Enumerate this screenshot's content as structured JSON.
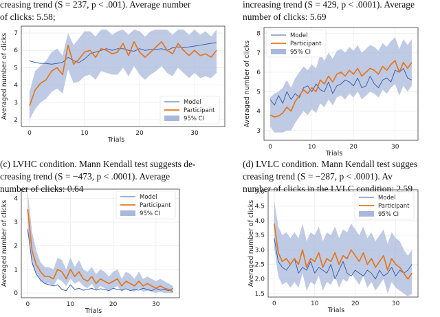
{
  "captions": {
    "top_left": [
      "creasing trend (S = 237, p < .001). Average number",
      "of clicks: 5.58;"
    ],
    "top_right": [
      "increasing trend (S = 429, p < .0001). Average",
      "number of clicks: 5.69"
    ],
    "c": [
      "(c) LVHC condition. Mann Kendall test suggests de-",
      "creasing trend (S = −473, p < .0001). Average",
      "number of clicks: 0.64"
    ],
    "d": [
      "(d) LVLC condition. Mann Kendall test sugges",
      "creasing trend (S = −287, p < .0001). Av",
      "number of clicks in the LVLC condition: 2.59"
    ]
  },
  "chart_data": [
    {
      "id": "a",
      "type": "line",
      "xlabel": "Trials",
      "ylabel": "Averaged number of clicks",
      "xlim": [
        -1.5,
        35.5
      ],
      "ylim": [
        1.6,
        7.4
      ],
      "xticks": [
        0,
        10,
        20,
        30
      ],
      "yticks": [
        2,
        3,
        4,
        5,
        6,
        7
      ],
      "legend_position": "lower-right",
      "legend": [
        "Model",
        "Participant",
        "95% CI"
      ],
      "series": [
        {
          "name": "Model",
          "color": "#3a62ab",
          "x": [
            0,
            1,
            2,
            3,
            4,
            5,
            6,
            7,
            8,
            9,
            10,
            11,
            12,
            13,
            14,
            15,
            16,
            17,
            18,
            19,
            20,
            21,
            22,
            23,
            24,
            25,
            26,
            27,
            28,
            29,
            30,
            31,
            32,
            33,
            34
          ],
          "values": [
            5.4,
            5.3,
            5.25,
            5.25,
            5.2,
            5.25,
            5.3,
            5.6,
            5.4,
            5.3,
            5.5,
            5.8,
            5.9,
            6.0,
            6.1,
            6.0,
            6.1,
            6.1,
            6.0,
            5.95,
            6.1,
            6.0,
            6.05,
            6.05,
            6.1,
            6.0,
            6.15,
            6.2,
            6.15,
            6.2,
            6.25,
            6.3,
            6.35,
            6.4,
            6.45
          ]
        },
        {
          "name": "Participant",
          "color": "#e4761b",
          "x": [
            0,
            1,
            2,
            3,
            4,
            5,
            6,
            7,
            8,
            9,
            10,
            11,
            12,
            13,
            14,
            15,
            16,
            17,
            18,
            19,
            20,
            21,
            22,
            23,
            24,
            25,
            26,
            27,
            28,
            29,
            30,
            31,
            32,
            33,
            34
          ],
          "values": [
            2.8,
            3.7,
            4.1,
            4.3,
            4.8,
            5.0,
            4.6,
            6.3,
            5.2,
            5.5,
            5.9,
            6.0,
            5.6,
            6.1,
            6.0,
            5.8,
            5.9,
            6.4,
            5.7,
            6.5,
            5.9,
            5.6,
            5.9,
            6.2,
            6.5,
            6.0,
            5.8,
            6.4,
            6.0,
            5.7,
            6.0,
            5.7,
            5.8,
            5.6,
            6.0
          ]
        },
        {
          "name": "95% CI",
          "color": "#a9b8dc",
          "lower": [
            2.0,
            2.6,
            3.0,
            3.2,
            3.6,
            3.8,
            3.5,
            4.9,
            4.1,
            4.2,
            4.5,
            4.6,
            4.3,
            4.8,
            4.7,
            4.6,
            4.6,
            5.0,
            4.5,
            5.1,
            4.6,
            4.3,
            4.6,
            4.8,
            5.1,
            4.7,
            4.5,
            5.0,
            4.7,
            4.4,
            4.7,
            4.4,
            4.5,
            4.4,
            4.7
          ],
          "upper": [
            3.6,
            4.8,
            5.1,
            5.4,
            5.9,
            6.1,
            5.7,
            7.0,
            6.3,
            6.7,
            7.1,
            7.1,
            6.8,
            7.2,
            7.2,
            6.9,
            7.1,
            7.2,
            6.9,
            7.2,
            7.1,
            6.8,
            7.1,
            7.2,
            7.2,
            7.2,
            6.9,
            7.2,
            7.2,
            6.9,
            7.2,
            6.9,
            7.1,
            6.8,
            7.2
          ]
        }
      ]
    },
    {
      "id": "b",
      "type": "line",
      "xlabel": "Trials",
      "ylabel": "Averaged number of clicks",
      "xlim": [
        -1.5,
        35.5
      ],
      "ylim": [
        2.5,
        8.3
      ],
      "xticks": [
        0,
        10,
        20,
        30
      ],
      "yticks": [
        3,
        4,
        5,
        6,
        7,
        8
      ],
      "legend_position": "top-left",
      "legend": [
        "Model",
        "Participant",
        "95% CI"
      ],
      "series": [
        {
          "name": "Model",
          "color": "#3a62ab",
          "x": [
            0,
            1,
            2,
            3,
            4,
            5,
            6,
            7,
            8,
            9,
            10,
            11,
            12,
            13,
            14,
            15,
            16,
            17,
            18,
            19,
            20,
            21,
            22,
            23,
            24,
            25,
            26,
            27,
            28,
            29,
            30,
            31,
            32,
            33,
            34
          ],
          "values": [
            4.6,
            4.3,
            4.8,
            4.4,
            5.0,
            4.6,
            4.9,
            4.7,
            5.2,
            5.3,
            5.0,
            5.4,
            5.1,
            5.0,
            5.5,
            4.9,
            5.3,
            5.4,
            5.6,
            5.5,
            5.3,
            5.7,
            5.2,
            5.3,
            5.8,
            5.4,
            5.2,
            5.6,
            5.7,
            5.5,
            6.1,
            6.0,
            6.2,
            5.7,
            5.6
          ]
        },
        {
          "name": "Participant",
          "color": "#e4761b",
          "x": [
            0,
            1,
            2,
            3,
            4,
            5,
            6,
            7,
            8,
            9,
            10,
            11,
            12,
            13,
            14,
            15,
            16,
            17,
            18,
            19,
            20,
            21,
            22,
            23,
            24,
            25,
            26,
            27,
            28,
            29,
            30,
            31,
            32,
            33,
            34
          ],
          "values": [
            3.8,
            3.7,
            3.75,
            3.9,
            4.2,
            4.0,
            4.5,
            4.8,
            5.1,
            4.9,
            5.2,
            5.0,
            5.6,
            5.4,
            5.8,
            5.5,
            5.9,
            6.0,
            5.8,
            6.1,
            5.9,
            6.2,
            5.8,
            6.0,
            6.2,
            6.1,
            5.9,
            6.3,
            6.1,
            6.4,
            6.6,
            6.0,
            6.5,
            6.2,
            6.5
          ]
        },
        {
          "name": "95% CI",
          "color": "#a9b8dc",
          "lower": [
            3.2,
            2.9,
            2.9,
            2.9,
            3.0,
            3.0,
            3.4,
            3.7,
            4.0,
            3.8,
            4.1,
            3.9,
            4.4,
            4.2,
            4.6,
            4.3,
            4.7,
            4.8,
            4.6,
            4.9,
            4.7,
            5.0,
            4.6,
            4.8,
            5.0,
            4.9,
            4.7,
            5.1,
            4.9,
            5.2,
            5.4,
            4.8,
            5.3,
            5.0,
            5.3
          ]
        },
        {
          "name": "95% CI upper",
          "color": "#a9b8dc",
          "upper": [
            4.7,
            4.9,
            5.0,
            5.2,
            5.6,
            5.2,
            5.7,
            6.0,
            6.3,
            6.1,
            6.4,
            6.2,
            6.9,
            6.6,
            7.0,
            6.7,
            7.1,
            7.2,
            7.0,
            7.3,
            7.1,
            7.4,
            7.0,
            7.2,
            7.4,
            7.3,
            7.1,
            7.5,
            7.3,
            7.6,
            7.8,
            7.2,
            7.7,
            7.4,
            7.7
          ]
        }
      ]
    },
    {
      "id": "c",
      "type": "line",
      "xlabel": "Trials",
      "ylabel": "Averaged number of clicks",
      "xlim": [
        -1.5,
        35.5
      ],
      "ylim": [
        -0.2,
        4.4
      ],
      "xticks": [
        0,
        10,
        20,
        30
      ],
      "yticks": [
        0,
        1,
        2,
        3,
        4
      ],
      "legend_position": "top-right",
      "legend": [
        "Model",
        "Participant",
        "95% CI"
      ],
      "series": [
        {
          "name": "Model",
          "color": "#3a62ab",
          "x": [
            0,
            1,
            2,
            3,
            4,
            5,
            6,
            7,
            8,
            9,
            10,
            11,
            12,
            13,
            14,
            15,
            16,
            17,
            18,
            19,
            20,
            21,
            22,
            23,
            24,
            25,
            26,
            27,
            28,
            29,
            30,
            31,
            32,
            33,
            34
          ],
          "values": [
            2.7,
            1.3,
            0.8,
            0.55,
            0.4,
            0.35,
            0.3,
            0.35,
            0.15,
            0.1,
            0.35,
            0.15,
            0.2,
            0.12,
            0.15,
            0.2,
            0.12,
            0.18,
            0.15,
            0.1,
            0.2,
            0.15,
            0.12,
            0.18,
            0.1,
            0.15,
            0.12,
            0.2,
            0.15,
            0.1,
            0.2,
            0.12,
            0.15,
            0.1,
            0.2
          ]
        },
        {
          "name": "Participant",
          "color": "#e4761b",
          "x": [
            0,
            1,
            2,
            3,
            4,
            5,
            6,
            7,
            8,
            9,
            10,
            11,
            12,
            13,
            14,
            15,
            16,
            17,
            18,
            19,
            20,
            21,
            22,
            23,
            24,
            25,
            26,
            27,
            28,
            29,
            30,
            31,
            32,
            33,
            34
          ],
          "values": [
            3.55,
            1.8,
            1.2,
            0.9,
            0.7,
            0.7,
            0.6,
            1.0,
            0.9,
            0.6,
            1.0,
            0.7,
            0.9,
            0.6,
            0.5,
            0.7,
            0.4,
            0.6,
            0.5,
            0.4,
            0.5,
            0.6,
            0.3,
            0.5,
            0.4,
            0.3,
            0.5,
            0.3,
            0.4,
            0.3,
            0.2,
            0.3,
            0.2,
            0.15,
            0.05
          ]
        },
        {
          "name": "95% CI",
          "color": "#a9b8dc",
          "lower": [
            2.6,
            1.2,
            0.8,
            0.5,
            0.4,
            0.4,
            0.3,
            0.6,
            0.5,
            0.3,
            0.6,
            0.4,
            0.5,
            0.3,
            0.2,
            0.4,
            0.1,
            0.3,
            0.2,
            0.1,
            0.2,
            0.3,
            0.05,
            0.2,
            0.1,
            0.05,
            0.2,
            0.05,
            0.1,
            0.05,
            0.0,
            0.05,
            0.0,
            0.0,
            0.0
          ],
          "upper": [
            4.3,
            2.6,
            1.8,
            1.3,
            1.1,
            1.1,
            1.0,
            1.5,
            1.4,
            1.0,
            1.5,
            1.1,
            1.4,
            1.0,
            0.9,
            1.1,
            0.8,
            1.0,
            0.9,
            0.7,
            0.9,
            1.0,
            0.6,
            0.9,
            0.8,
            0.6,
            0.9,
            0.6,
            0.7,
            0.6,
            0.5,
            0.6,
            0.5,
            0.4,
            0.3
          ]
        }
      ]
    },
    {
      "id": "d",
      "type": "line",
      "xlabel": "Trials",
      "ylabel": "Averaged number of clicks",
      "xlim": [
        -1.5,
        35.5
      ],
      "ylim": [
        1.38,
        5.06
      ],
      "xticks": [
        0,
        10,
        20,
        30
      ],
      "yticks": [
        1.5,
        2.0,
        2.5,
        3.0,
        3.5,
        4.0,
        4.5,
        5.0
      ],
      "ytick_labels": [
        "1.5",
        "2.0",
        "2.5",
        "3.0",
        "3.5",
        "4.0",
        "4.5",
        "5.0"
      ],
      "legend_position": "top-right",
      "legend": [
        "Model",
        "Participant",
        "95% CI"
      ],
      "series": [
        {
          "name": "Model",
          "color": "#3a62ab",
          "x": [
            0,
            1,
            2,
            3,
            4,
            5,
            6,
            7,
            8,
            9,
            10,
            11,
            12,
            13,
            14,
            15,
            16,
            17,
            18,
            19,
            20,
            21,
            22,
            23,
            24,
            25,
            26,
            27,
            28,
            29,
            30,
            31,
            32,
            33,
            34
          ],
          "values": [
            3.4,
            2.6,
            2.4,
            2.3,
            2.5,
            2.7,
            2.2,
            2.4,
            2.3,
            2.6,
            2.2,
            2.4,
            2.3,
            2.2,
            2.5,
            2.0,
            2.3,
            2.6,
            2.2,
            2.1,
            2.3,
            2.2,
            2.1,
            2.3,
            2.2,
            2.0,
            2.3,
            2.1,
            2.2,
            2.4,
            2.1,
            2.3,
            2.2,
            2.3,
            2.5
          ]
        },
        {
          "name": "Participant",
          "color": "#e4761b",
          "x": [
            0,
            1,
            2,
            3,
            4,
            5,
            6,
            7,
            8,
            9,
            10,
            11,
            12,
            13,
            14,
            15,
            16,
            17,
            18,
            19,
            20,
            21,
            22,
            23,
            24,
            25,
            26,
            27,
            28,
            29,
            30,
            31,
            32,
            33,
            34
          ],
          "values": [
            3.9,
            2.9,
            2.6,
            2.7,
            2.5,
            2.7,
            2.5,
            3.0,
            2.4,
            2.7,
            2.6,
            2.9,
            2.4,
            2.7,
            2.6,
            2.9,
            2.5,
            2.8,
            2.7,
            3.0,
            2.8,
            2.6,
            2.9,
            2.5,
            2.7,
            2.4,
            2.6,
            2.8,
            2.3,
            2.7,
            2.5,
            2.4,
            2.2,
            2.0,
            2.2
          ]
        },
        {
          "name": "95% CI",
          "color": "#a9b8dc",
          "lower": [
            3.1,
            2.1,
            1.8,
            1.9,
            1.7,
            1.9,
            1.7,
            2.2,
            1.6,
            1.9,
            1.8,
            2.1,
            1.6,
            1.9,
            1.8,
            2.1,
            1.7,
            2.0,
            1.9,
            2.2,
            2.0,
            1.8,
            2.1,
            1.7,
            1.9,
            1.6,
            1.8,
            2.0,
            1.5,
            1.9,
            1.7,
            1.6,
            1.5,
            1.4,
            1.5
          ],
          "upper": [
            4.7,
            3.8,
            3.5,
            3.6,
            3.4,
            3.6,
            3.4,
            3.9,
            3.3,
            3.6,
            3.5,
            3.8,
            3.3,
            3.6,
            3.5,
            3.8,
            3.4,
            3.7,
            3.6,
            3.9,
            3.7,
            3.5,
            3.8,
            3.4,
            3.6,
            3.3,
            3.5,
            3.7,
            3.2,
            3.6,
            3.4,
            3.3,
            3.0,
            2.8,
            3.0
          ]
        }
      ]
    }
  ]
}
